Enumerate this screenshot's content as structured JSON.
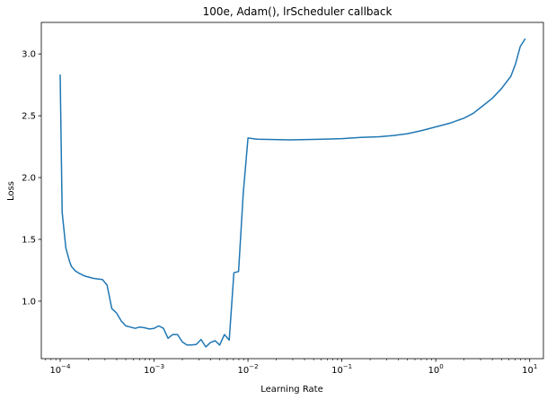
{
  "chart_data": {
    "type": "line",
    "title": "100e, Adam(), lrScheduler callback",
    "xlabel": "Learning Rate",
    "ylabel": "Loss",
    "xscale": "log",
    "xlim": [
      6.3e-05,
      14.0
    ],
    "ylim": [
      0.535,
      3.255
    ],
    "grid": false,
    "x_ticks": [
      {
        "value": 0.0001,
        "base": "10",
        "exp": "−4"
      },
      {
        "value": 0.001,
        "base": "10",
        "exp": "−3"
      },
      {
        "value": 0.01,
        "base": "10",
        "exp": "−2"
      },
      {
        "value": 0.1,
        "base": "10",
        "exp": "−1"
      },
      {
        "value": 1,
        "base": "10",
        "exp": "0"
      },
      {
        "value": 10,
        "base": "10",
        "exp": "1"
      }
    ],
    "y_ticks": [
      {
        "value": 1.0,
        "label": "1.0"
      },
      {
        "value": 1.5,
        "label": "1.5"
      },
      {
        "value": 2.0,
        "label": "2.0"
      },
      {
        "value": 2.5,
        "label": "2.5"
      },
      {
        "value": 3.0,
        "label": "3.0"
      }
    ],
    "series": [
      {
        "color": "#1f77b4",
        "x": [
          0.0001,
          0.000105,
          0.000115,
          0.000126,
          0.000132,
          0.000145,
          0.00016,
          0.00018,
          0.0002,
          0.000224,
          0.000251,
          0.000282,
          0.000316,
          0.000355,
          0.000398,
          0.000447,
          0.0005,
          0.00056,
          0.00063,
          0.0007,
          0.00079,
          0.00089,
          0.001,
          0.00112,
          0.00126,
          0.00141,
          0.00158,
          0.00178,
          0.002,
          0.00224,
          0.00251,
          0.00282,
          0.00316,
          0.00355,
          0.00398,
          0.00447,
          0.005,
          0.00562,
          0.00631,
          0.00708,
          0.00794,
          0.00891,
          0.01,
          0.0112,
          0.0126,
          0.0282,
          0.0631,
          0.1,
          0.158,
          0.251,
          0.355,
          0.5,
          0.708,
          1.0,
          1.41,
          2.0,
          2.51,
          3.16,
          3.98,
          5.01,
          6.31,
          7.08,
          7.94,
          8.91
        ],
        "y": [
          2.83,
          1.72,
          1.43,
          1.32,
          1.28,
          1.245,
          1.225,
          1.205,
          1.195,
          1.185,
          1.18,
          1.175,
          1.13,
          0.94,
          0.905,
          0.84,
          0.8,
          0.79,
          0.78,
          0.79,
          0.785,
          0.775,
          0.78,
          0.8,
          0.78,
          0.7,
          0.73,
          0.73,
          0.67,
          0.645,
          0.645,
          0.65,
          0.69,
          0.63,
          0.665,
          0.68,
          0.645,
          0.73,
          0.685,
          1.23,
          1.24,
          1.87,
          2.32,
          2.315,
          2.31,
          2.305,
          2.31,
          2.315,
          2.325,
          2.33,
          2.34,
          2.355,
          2.38,
          2.41,
          2.44,
          2.48,
          2.52,
          2.58,
          2.64,
          2.72,
          2.82,
          2.92,
          3.06,
          3.12
        ]
      }
    ]
  }
}
